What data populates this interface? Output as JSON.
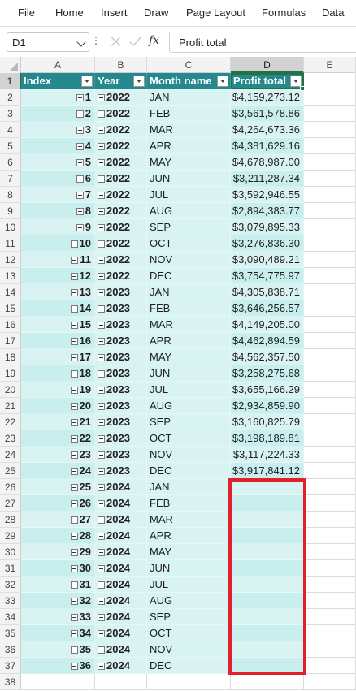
{
  "menu": [
    "File",
    "Home",
    "Insert",
    "Draw",
    "Page Layout",
    "Formulas",
    "Data"
  ],
  "formula_bar": {
    "name_box": "D1",
    "formula": "Profit total"
  },
  "columns": [
    "A",
    "B",
    "C",
    "D",
    "E"
  ],
  "table": {
    "headers": [
      "Index",
      "Year",
      "Month name",
      "Profit total"
    ],
    "rows": [
      {
        "index": "1",
        "year": "2022",
        "month": "JAN",
        "profit": "$4,159,273.12"
      },
      {
        "index": "2",
        "year": "2022",
        "month": "FEB",
        "profit": "$3,561,578.86"
      },
      {
        "index": "3",
        "year": "2022",
        "month": "MAR",
        "profit": "$4,264,673.36"
      },
      {
        "index": "4",
        "year": "2022",
        "month": "APR",
        "profit": "$4,381,629.16"
      },
      {
        "index": "5",
        "year": "2022",
        "month": "MAY",
        "profit": "$4,678,987.00"
      },
      {
        "index": "6",
        "year": "2022",
        "month": "JUN",
        "profit": "$3,211,287.34"
      },
      {
        "index": "7",
        "year": "2022",
        "month": "JUL",
        "profit": "$3,592,946.55"
      },
      {
        "index": "8",
        "year": "2022",
        "month": "AUG",
        "profit": "$2,894,383.77"
      },
      {
        "index": "9",
        "year": "2022",
        "month": "SEP",
        "profit": "$3,079,895.33"
      },
      {
        "index": "10",
        "year": "2022",
        "month": "OCT",
        "profit": "$3,276,836.30"
      },
      {
        "index": "11",
        "year": "2022",
        "month": "NOV",
        "profit": "$3,090,489.21"
      },
      {
        "index": "12",
        "year": "2022",
        "month": "DEC",
        "profit": "$3,754,775.97"
      },
      {
        "index": "13",
        "year": "2023",
        "month": "JAN",
        "profit": "$4,305,838.71"
      },
      {
        "index": "14",
        "year": "2023",
        "month": "FEB",
        "profit": "$3,646,256.57"
      },
      {
        "index": "15",
        "year": "2023",
        "month": "MAR",
        "profit": "$4,149,205.00"
      },
      {
        "index": "16",
        "year": "2023",
        "month": "APR",
        "profit": "$4,462,894.59"
      },
      {
        "index": "17",
        "year": "2023",
        "month": "MAY",
        "profit": "$4,562,357.50"
      },
      {
        "index": "18",
        "year": "2023",
        "month": "JUN",
        "profit": "$3,258,275.68"
      },
      {
        "index": "19",
        "year": "2023",
        "month": "JUL",
        "profit": "$3,655,166.29"
      },
      {
        "index": "20",
        "year": "2023",
        "month": "AUG",
        "profit": "$2,934,859.90"
      },
      {
        "index": "21",
        "year": "2023",
        "month": "SEP",
        "profit": "$3,160,825.79"
      },
      {
        "index": "22",
        "year": "2023",
        "month": "OCT",
        "profit": "$3,198,189.81"
      },
      {
        "index": "23",
        "year": "2023",
        "month": "NOV",
        "profit": "$3,117,224.33"
      },
      {
        "index": "24",
        "year": "2023",
        "month": "DEC",
        "profit": "$3,917,841.12"
      },
      {
        "index": "25",
        "year": "2024",
        "month": "JAN",
        "profit": ""
      },
      {
        "index": "26",
        "year": "2024",
        "month": "FEB",
        "profit": ""
      },
      {
        "index": "27",
        "year": "2024",
        "month": "MAR",
        "profit": ""
      },
      {
        "index": "28",
        "year": "2024",
        "month": "APR",
        "profit": ""
      },
      {
        "index": "29",
        "year": "2024",
        "month": "MAY",
        "profit": ""
      },
      {
        "index": "30",
        "year": "2024",
        "month": "JUN",
        "profit": ""
      },
      {
        "index": "31",
        "year": "2024",
        "month": "JUL",
        "profit": ""
      },
      {
        "index": "32",
        "year": "2024",
        "month": "AUG",
        "profit": ""
      },
      {
        "index": "33",
        "year": "2024",
        "month": "SEP",
        "profit": ""
      },
      {
        "index": "34",
        "year": "2024",
        "month": "OCT",
        "profit": ""
      },
      {
        "index": "35",
        "year": "2024",
        "month": "NOV",
        "profit": ""
      },
      {
        "index": "36",
        "year": "2024",
        "month": "DEC",
        "profit": ""
      }
    ]
  },
  "row_numbers": [
    "1",
    "2",
    "3",
    "4",
    "5",
    "6",
    "7",
    "8",
    "9",
    "10",
    "11",
    "12",
    "13",
    "14",
    "15",
    "16",
    "17",
    "18",
    "19",
    "20",
    "21",
    "22",
    "23",
    "24",
    "25",
    "26",
    "27",
    "28",
    "29",
    "30",
    "31",
    "32",
    "33",
    "34",
    "35",
    "36",
    "37",
    "38"
  ],
  "colors": {
    "header_fill": "#26888f",
    "band_light": "#d9f3f3",
    "band_dark": "#c8eeee",
    "selection": "#217346",
    "highlight_box": "#e0202a"
  }
}
